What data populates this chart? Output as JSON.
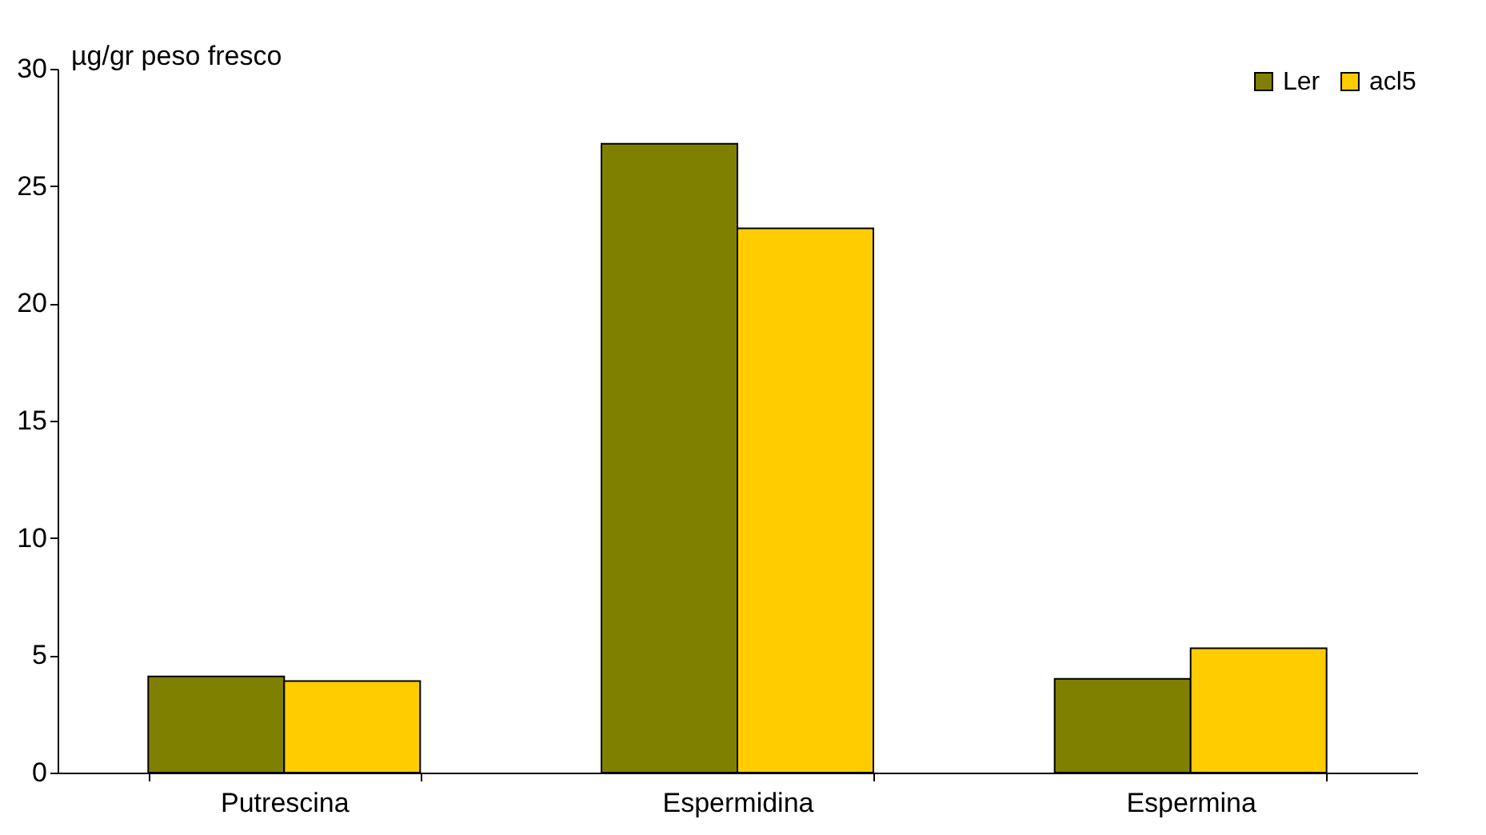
{
  "chart_data": {
    "type": "bar",
    "ylabel": "µg/gr peso  fresco",
    "categories": [
      "Putrescina",
      "Espermidina",
      "Espermina"
    ],
    "series": [
      {
        "name": "Ler",
        "color": "#808000",
        "values": [
          4.1,
          26.8,
          4.0
        ]
      },
      {
        "name": "acl5",
        "color": "#ffcc00",
        "values": [
          3.9,
          23.2,
          5.3
        ]
      }
    ],
    "ylim": [
      0,
      30
    ],
    "yticks": [
      0,
      5,
      10,
      15,
      20,
      25,
      30
    ],
    "grid": false,
    "legend": "top right"
  }
}
